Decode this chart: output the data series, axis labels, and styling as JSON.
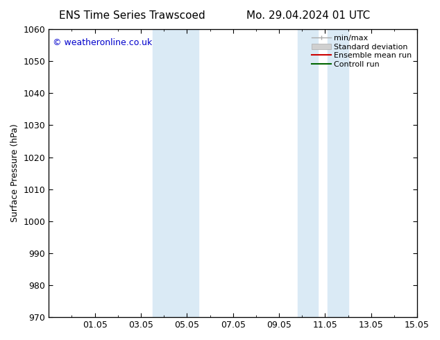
{
  "title_left": "ENS Time Series Trawscoed",
  "title_right": "Mo. 29.04.2024 01 UTC",
  "ylabel": "Surface Pressure (hPa)",
  "ylim": [
    970,
    1060
  ],
  "yticks": [
    970,
    980,
    990,
    1000,
    1010,
    1020,
    1030,
    1040,
    1050,
    1060
  ],
  "xlim": [
    0.0,
    16.0
  ],
  "xtick_labels": [
    "01.05",
    "03.05",
    "05.05",
    "07.05",
    "09.05",
    "11.05",
    "13.05",
    "15.05"
  ],
  "xtick_positions": [
    2,
    4,
    6,
    8,
    10,
    12,
    14,
    16
  ],
  "shaded_bands": [
    {
      "x_start": 4.5,
      "x_end": 5.5
    },
    {
      "x_start": 5.5,
      "x_end": 6.5
    },
    {
      "x_start": 10.8,
      "x_end": 11.7
    },
    {
      "x_start": 12.1,
      "x_end": 13.0
    }
  ],
  "shade_color": "#daeaf5",
  "copyright_text": "© weatheronline.co.uk",
  "copyright_color": "#0000cc",
  "bg_color": "#ffffff",
  "title_fontsize": 11,
  "tick_fontsize": 9,
  "ylabel_fontsize": 9,
  "legend_fontsize": 8
}
